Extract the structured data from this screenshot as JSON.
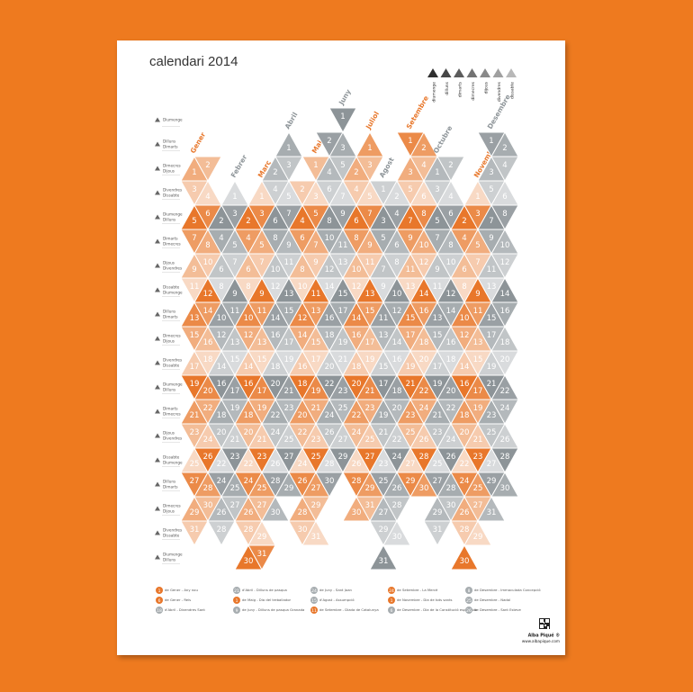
{
  "title": "calendari 2014",
  "weekday_legend": [
    {
      "label": "diumenge",
      "color": "#2f2f2f"
    },
    {
      "label": "dilluns",
      "color": "#464646"
    },
    {
      "label": "dimarts",
      "color": "#5c5c5c"
    },
    {
      "label": "dimecres",
      "color": "#727272"
    },
    {
      "label": "dijous",
      "color": "#898989"
    },
    {
      "label": "divendres",
      "color": "#a0a0a0"
    },
    {
      "label": "dissabte",
      "color": "#b8b8b8"
    }
  ],
  "weekday_rows": [
    [
      "Diumenge"
    ],
    [
      "Dilluns",
      "Dimarts"
    ],
    [
      "Dimecres",
      "Dijous"
    ],
    [
      "Divendres",
      "Dissabte"
    ],
    [
      "Diumenge",
      "Dilluns"
    ],
    [
      "Dimarts",
      "Dimecres"
    ],
    [
      "Dijous",
      "Divendres"
    ],
    [
      "Dissabte",
      "Diumenge"
    ],
    [
      "Dilluns",
      "Dimarts"
    ],
    [
      "Dimecres",
      "Dijous"
    ],
    [
      "Divendres",
      "Dissabte"
    ],
    [
      "Diumenge",
      "Dilluns"
    ],
    [
      "Dimarts",
      "Dimecres"
    ],
    [
      "Dijous",
      "Divendres"
    ],
    [
      "Dissabte",
      "Diumenge"
    ],
    [
      "Dilluns",
      "Dimarts"
    ],
    [
      "Dimecres",
      "Dijous"
    ],
    [
      "Divendres",
      "Dissabte"
    ],
    [
      "Diumenge",
      "Dilluns"
    ]
  ],
  "palettes": {
    "orange": [
      "#e8772b",
      "#eb8a48",
      "#ee9c63",
      "#f1ad7e",
      "#f3bd97",
      "#f6cbae",
      "#f8d9c4"
    ],
    "gray": [
      "#8d9498",
      "#9aa0a4",
      "#a7adb0",
      "#b4b9bc",
      "#c1c5c7",
      "#cdd0d2",
      "#d9dbdd"
    ]
  },
  "months": [
    {
      "name": "Gener",
      "palette": "orange",
      "days": [
        1,
        2,
        3,
        4,
        5,
        6,
        7,
        8,
        9,
        10,
        11,
        12,
        13,
        14,
        15,
        16,
        17,
        18,
        19,
        20,
        21,
        22,
        23,
        24,
        25,
        26,
        27,
        28,
        29,
        30,
        31
      ]
    },
    {
      "name": "Febrer",
      "palette": "gray",
      "days": [
        1,
        2,
        3,
        4,
        5,
        6,
        7,
        8,
        9,
        10,
        11,
        12,
        13,
        14,
        15,
        16,
        17,
        18,
        19,
        20,
        21,
        22,
        23,
        24,
        25,
        26,
        27,
        28
      ]
    },
    {
      "name": "Març",
      "palette": "orange",
      "days": [
        1,
        2,
        3,
        4,
        5,
        6,
        7,
        8,
        9,
        10,
        11,
        12,
        13,
        14,
        15,
        16,
        17,
        18,
        19,
        20,
        21,
        22,
        23,
        24,
        25,
        26,
        27,
        28,
        29,
        30,
        31
      ]
    },
    {
      "name": "Abril",
      "palette": "gray",
      "days": [
        1,
        2,
        3,
        4,
        5,
        6,
        7,
        8,
        9,
        10,
        11,
        12,
        13,
        14,
        15,
        16,
        17,
        18,
        19,
        20,
        21,
        22,
        23,
        24,
        25,
        26,
        27,
        28,
        29,
        30
      ]
    },
    {
      "name": "Maig",
      "palette": "orange",
      "days": [
        1,
        2,
        3,
        4,
        5,
        6,
        7,
        8,
        9,
        10,
        11,
        12,
        13,
        14,
        15,
        16,
        17,
        18,
        19,
        20,
        21,
        22,
        23,
        24,
        25,
        26,
        27,
        28,
        29,
        30,
        31
      ]
    },
    {
      "name": "Juny",
      "palette": "gray",
      "days": [
        1,
        2,
        3,
        4,
        5,
        6,
        7,
        8,
        9,
        10,
        11,
        12,
        13,
        14,
        15,
        16,
        17,
        18,
        19,
        20,
        21,
        22,
        23,
        24,
        25,
        26,
        27,
        28,
        29,
        30
      ]
    },
    {
      "name": "Juliol",
      "palette": "orange",
      "days": [
        1,
        2,
        3,
        4,
        5,
        6,
        7,
        8,
        9,
        10,
        11,
        12,
        13,
        14,
        15,
        16,
        17,
        18,
        19,
        20,
        21,
        22,
        23,
        24,
        25,
        26,
        27,
        28,
        29,
        30,
        31
      ]
    },
    {
      "name": "Agost",
      "palette": "gray",
      "days": [
        1,
        2,
        3,
        4,
        5,
        6,
        7,
        8,
        9,
        10,
        11,
        12,
        13,
        14,
        15,
        16,
        17,
        18,
        19,
        20,
        21,
        22,
        23,
        24,
        25,
        26,
        27,
        28,
        29,
        30,
        31
      ]
    },
    {
      "name": "Setembre",
      "palette": "orange",
      "days": [
        1,
        2,
        3,
        4,
        5,
        6,
        7,
        8,
        9,
        10,
        11,
        12,
        13,
        14,
        15,
        16,
        17,
        18,
        19,
        20,
        21,
        22,
        23,
        24,
        25,
        26,
        27,
        28,
        29,
        30
      ]
    },
    {
      "name": "Octubre",
      "palette": "gray",
      "days": [
        1,
        2,
        3,
        4,
        5,
        6,
        7,
        8,
        9,
        10,
        11,
        12,
        13,
        14,
        15,
        16,
        17,
        18,
        19,
        20,
        21,
        22,
        23,
        24,
        25,
        26,
        27,
        28,
        29,
        30,
        31
      ]
    },
    {
      "name": "Novembre",
      "palette": "orange",
      "days": [
        1,
        2,
        3,
        4,
        5,
        6,
        7,
        8,
        9,
        10,
        11,
        12,
        13,
        14,
        15,
        16,
        17,
        18,
        19,
        20,
        21,
        22,
        23,
        24,
        25,
        26,
        27,
        28,
        29,
        30
      ]
    },
    {
      "name": "Desembre",
      "palette": "gray",
      "days": [
        1,
        2,
        3,
        4,
        5,
        6,
        7,
        8,
        9,
        10,
        11,
        12,
        13,
        14,
        15,
        16,
        17,
        18,
        19,
        20,
        21,
        22,
        23,
        24,
        25,
        26,
        27,
        28,
        29,
        30,
        31
      ]
    }
  ],
  "holidays": [
    {
      "day": 1,
      "text": "de Gener - Any nou",
      "color": "#e8772b"
    },
    {
      "day": 6,
      "text": "de Gener - Reis",
      "color": "#e8772b"
    },
    {
      "day": 18,
      "text": "d'Abril - Divendres Sant",
      "color": "#a7adb0"
    },
    {
      "day": 21,
      "text": "d'Abril - Dilluns de pasqua",
      "color": "#a7adb0"
    },
    {
      "day": 1,
      "text": "de Maig - Dia del treballador",
      "color": "#e8772b"
    },
    {
      "day": 9,
      "text": "de Juny - Dilluns de pasqua Granada",
      "color": "#a7adb0"
    },
    {
      "day": 24,
      "text": "de Juny - Sant Joan",
      "color": "#a7adb0"
    },
    {
      "day": 15,
      "text": "d'Agost - Assumpció",
      "color": "#a7adb0"
    },
    {
      "day": 11,
      "text": "de Setembre - Diada de Catalunya",
      "color": "#e8772b"
    },
    {
      "day": 24,
      "text": "de Setembre - La Mercè",
      "color": "#e8772b"
    },
    {
      "day": 1,
      "text": "de Novembre - Dia de tots sants",
      "color": "#e8772b"
    },
    {
      "day": 6,
      "text": "de Desembre - Dia de la Constitució espanyola",
      "color": "#a7adb0"
    },
    {
      "day": 8,
      "text": "de Desembre - Immaculada Concepció",
      "color": "#a7adb0"
    },
    {
      "day": 25,
      "text": "de Desembre - Nadal",
      "color": "#a7adb0"
    },
    {
      "day": 26,
      "text": "de Desembre - Sant Esteve",
      "color": "#a7adb0"
    }
  ],
  "footer": {
    "brand": "Alba Piqué ®",
    "url": "www.albapique.com"
  }
}
